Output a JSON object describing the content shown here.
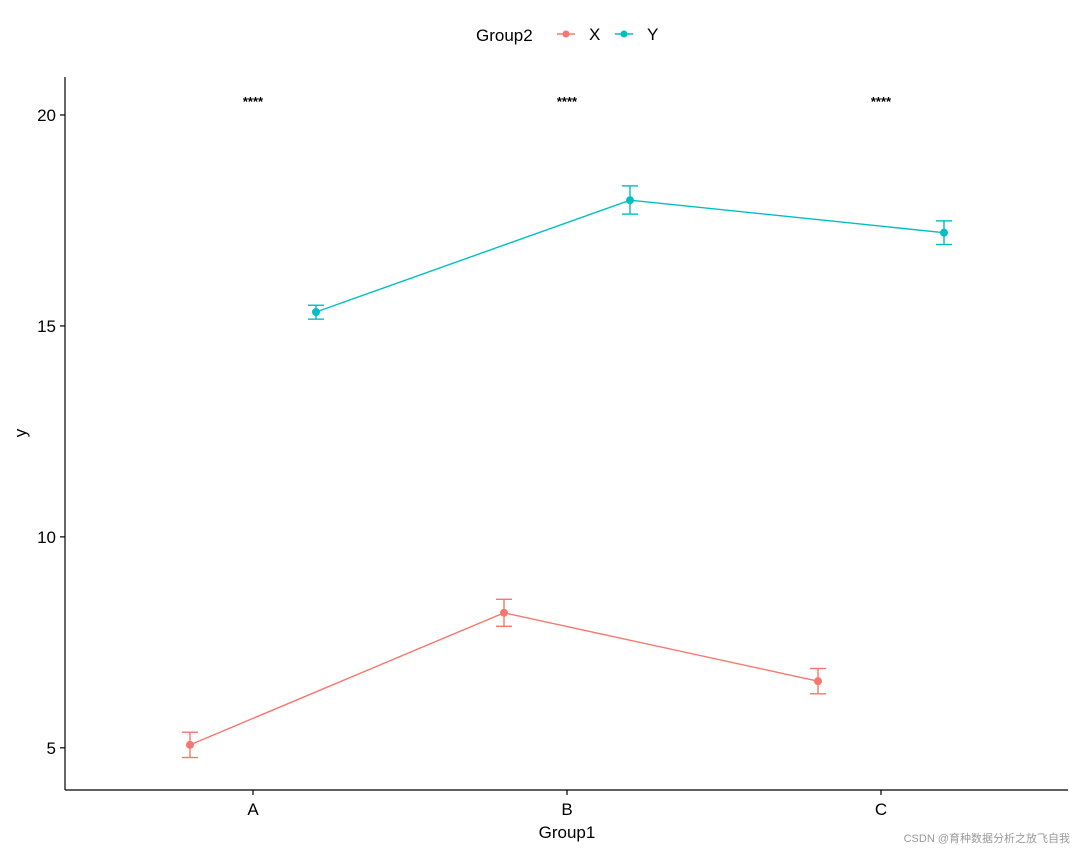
{
  "chart_data": {
    "type": "line",
    "title": "",
    "xlabel": "Group1",
    "ylabel": "y",
    "categories": [
      "A",
      "B",
      "C"
    ],
    "ylim": [
      4.0,
      20.9
    ],
    "yticks": [
      5,
      10,
      15,
      20
    ],
    "legend": {
      "title": "Group2",
      "placement": "top"
    },
    "series": [
      {
        "name": "X",
        "color": "#F8766D",
        "values": [
          5.07,
          8.2,
          6.58
        ],
        "error_low": [
          4.77,
          7.88,
          6.28
        ],
        "error_high": [
          5.37,
          8.52,
          6.88
        ]
      },
      {
        "name": "Y",
        "color": "#00BFC4",
        "values": [
          15.33,
          17.98,
          17.21
        ],
        "error_low": [
          15.16,
          17.65,
          16.93
        ],
        "error_high": [
          15.49,
          18.32,
          17.49
        ]
      }
    ],
    "annotations": [
      "****",
      "****",
      "****"
    ]
  },
  "watermark": "CSDN @育种数据分析之放飞自我"
}
